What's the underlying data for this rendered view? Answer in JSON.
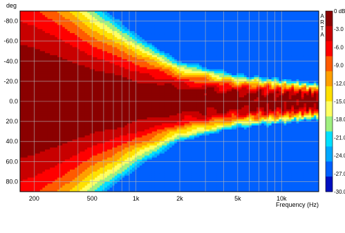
{
  "chart_data": {
    "type": "heatmap",
    "title": "",
    "xlabel": "Frequency (Hz)",
    "ylabel": "deg",
    "xscale": "log",
    "xlim": [
      160,
      18000
    ],
    "ylim": [
      -90,
      90
    ],
    "x_ticks": [
      {
        "value": 200,
        "label": "200"
      },
      {
        "value": 500,
        "label": "500"
      },
      {
        "value": 1000,
        "label": "1k"
      },
      {
        "value": 2000,
        "label": "2k"
      },
      {
        "value": 5000,
        "label": "5k"
      },
      {
        "value": 10000,
        "label": "10k"
      }
    ],
    "y_ticks": [
      {
        "value": -80,
        "label": "-80.0"
      },
      {
        "value": -60,
        "label": "-60.0"
      },
      {
        "value": -40,
        "label": "-40.0"
      },
      {
        "value": -20,
        "label": "-20.0"
      },
      {
        "value": 0,
        "label": "0.0"
      },
      {
        "value": 20,
        "label": "20.0"
      },
      {
        "value": 40,
        "label": "40.0"
      },
      {
        "value": 60,
        "label": "60.0"
      },
      {
        "value": 80,
        "label": "80.0"
      }
    ],
    "grid": true,
    "watermark": "ARTA",
    "colorbar": {
      "unit": "dB",
      "range": [
        -30,
        0
      ],
      "step": 3,
      "labels": [
        "0 dB",
        "-3.0",
        "-6.0",
        "-9.0",
        "-12.0",
        "-15.0",
        "-18.0",
        "-21.0",
        "-24.0",
        "-27.0",
        "-30.0"
      ],
      "colors": [
        "#8b0000",
        "#c80000",
        "#ff0000",
        "#ff5a00",
        "#ffa000",
        "#ffe000",
        "#ffff60",
        "#a0f080",
        "#00e0ff",
        "#00a8ff",
        "#0060ff",
        "#0010c0"
      ]
    },
    "beamwidth_profile": {
      "frequency_hz": [
        160,
        200,
        300,
        500,
        700,
        1000,
        2000,
        5000,
        10000,
        18000
      ],
      "minus6db_half_angle_deg": [
        80,
        75,
        62,
        45,
        38,
        30,
        18,
        12,
        10,
        8
      ]
    }
  }
}
